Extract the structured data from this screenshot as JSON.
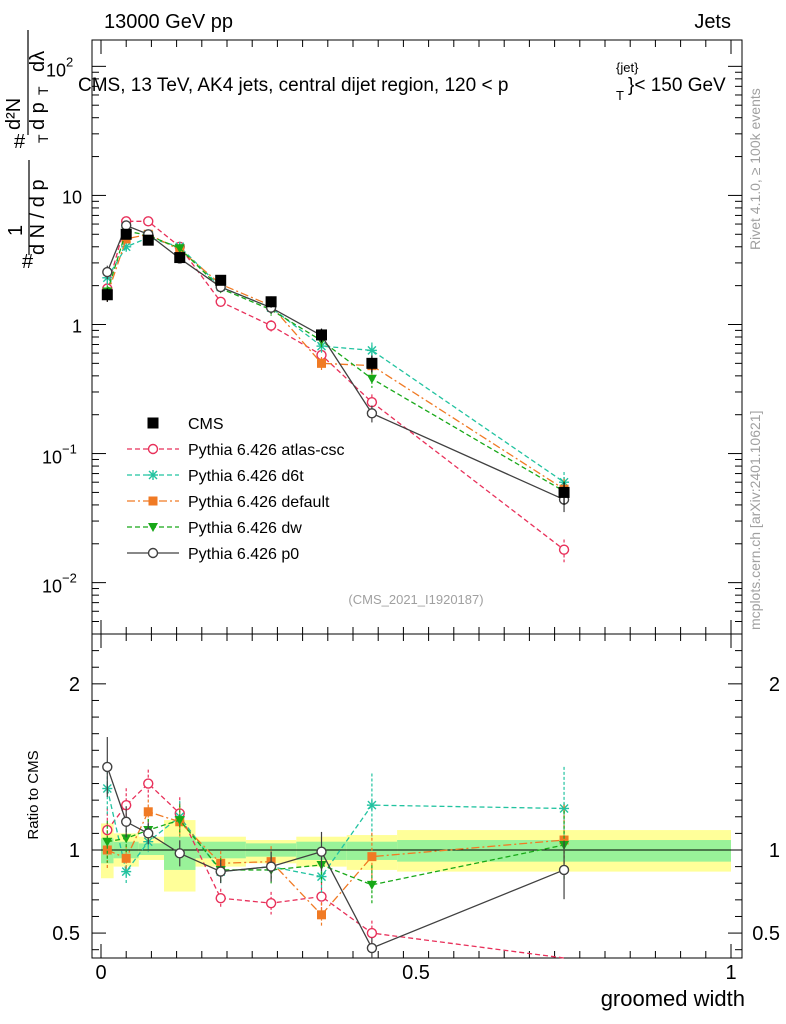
{
  "header": {
    "left": "13000 GeV pp",
    "right": "Jets",
    "plot_title": "CMS, 13 TeV, AK4 jets, central dijet region, 120 < p",
    "plot_title_sup": "{jet}",
    "plot_title_sub": "T",
    "plot_title_end": "}< 150 GeV",
    "side_right_top": "Rivet 4.1.0, ≥ 100k events",
    "side_right_bottom": "mcplots.cern.ch [arXiv:2401.10621]",
    "watermark": "(CMS_2021_I1920187)"
  },
  "colors": {
    "cms": "#000000",
    "atlas_csc": "#e8305a",
    "d6t": "#22c3a0",
    "default": "#f07a24",
    "dw": "#18a818",
    "p0": "#404040",
    "band_inner": "#99f299",
    "band_outer": "#ffff99"
  },
  "chart_data": [
    {
      "type": "scatter",
      "panel": "main",
      "title": "CMS, 13 TeV, AK4 jets, central dijet region, 120 < pT{jet} < 150 GeV",
      "ylabel": "1/(dN/dpT) d²N/(dpT dλ)",
      "xlabel": "groomed width",
      "yscale": "log",
      "xlim": [
        -0.02,
        1.0
      ],
      "ylim": [
        0.004,
        160
      ],
      "y_ticks": [
        "10^-2",
        "10^-1",
        "1",
        "10",
        "10^2"
      ],
      "x": [
        0.01,
        0.04,
        0.075,
        0.125,
        0.19,
        0.27,
        0.35,
        0.43,
        0.735
      ],
      "legend_position": "lower-left",
      "series": [
        {
          "name": "CMS",
          "key": "cms",
          "values": [
            1.7,
            5.0,
            4.5,
            3.3,
            2.2,
            1.5,
            0.83,
            0.5,
            0.05
          ]
        },
        {
          "name": "Pythia 6.426 atlas-csc",
          "key": "atlas_csc",
          "values": [
            1.9,
            6.3,
            6.3,
            4.0,
            1.5,
            0.98,
            0.58,
            0.25,
            0.018
          ]
        },
        {
          "name": "Pythia 6.426 d6t",
          "key": "d6t",
          "values": [
            2.3,
            4.0,
            4.7,
            4.0,
            1.95,
            1.35,
            0.68,
            0.63,
            0.06
          ]
        },
        {
          "name": "Pythia 6.426 default",
          "key": "default",
          "values": [
            1.7,
            4.6,
            5.0,
            3.8,
            2.05,
            1.4,
            0.5,
            0.48,
            0.053
          ]
        },
        {
          "name": "Pythia 6.426 dw",
          "key": "dw",
          "values": [
            1.8,
            5.3,
            4.9,
            3.9,
            1.9,
            1.3,
            0.75,
            0.38,
            0.051
          ]
        },
        {
          "name": "Pythia 6.426 p0",
          "key": "p0",
          "values": [
            2.55,
            5.85,
            5.0,
            3.25,
            1.95,
            1.35,
            0.82,
            0.205,
            0.044
          ]
        }
      ]
    },
    {
      "type": "scatter",
      "panel": "ratio",
      "ylabel": "Ratio to CMS",
      "xlabel": "groomed width",
      "xlim": [
        -0.02,
        1.0
      ],
      "ylim": [
        0.35,
        2.3
      ],
      "y_ticks": [
        "0.5",
        "1",
        "2"
      ],
      "x_ticks": [
        "0",
        "0.5",
        "1"
      ],
      "x": [
        0.01,
        0.04,
        0.075,
        0.125,
        0.19,
        0.27,
        0.35,
        0.43,
        0.735
      ],
      "bands": [
        {
          "xmin": 0.0,
          "xmax": 0.02,
          "inner": [
            0.92,
            1.07
          ],
          "outer": [
            0.83,
            1.16
          ]
        },
        {
          "xmin": 0.02,
          "xmax": 0.06,
          "inner": [
            0.95,
            1.05
          ],
          "outer": [
            0.9,
            1.1
          ]
        },
        {
          "xmin": 0.06,
          "xmax": 0.1,
          "inner": [
            0.97,
            1.04
          ],
          "outer": [
            0.94,
            1.08
          ]
        },
        {
          "xmin": 0.1,
          "xmax": 0.15,
          "inner": [
            0.88,
            1.08
          ],
          "outer": [
            0.75,
            1.18
          ]
        },
        {
          "xmin": 0.15,
          "xmax": 0.23,
          "inner": [
            0.95,
            1.05
          ],
          "outer": [
            0.9,
            1.08
          ]
        },
        {
          "xmin": 0.23,
          "xmax": 0.31,
          "inner": [
            0.96,
            1.04
          ],
          "outer": [
            0.92,
            1.06
          ]
        },
        {
          "xmin": 0.31,
          "xmax": 0.39,
          "inner": [
            0.94,
            1.05
          ],
          "outer": [
            0.9,
            1.08
          ]
        },
        {
          "xmin": 0.39,
          "xmax": 0.47,
          "inner": [
            0.94,
            1.05
          ],
          "outer": [
            0.88,
            1.09
          ]
        },
        {
          "xmin": 0.47,
          "xmax": 1.0,
          "inner": [
            0.93,
            1.06
          ],
          "outer": [
            0.87,
            1.12
          ]
        }
      ],
      "series": [
        {
          "name": "Pythia 6.426 atlas-csc",
          "key": "atlas_csc",
          "values": [
            1.12,
            1.27,
            1.4,
            1.22,
            0.71,
            0.68,
            0.72,
            0.5,
            0.3
          ]
        },
        {
          "name": "Pythia 6.426 d6t",
          "key": "d6t",
          "values": [
            1.37,
            0.87,
            1.05,
            1.2,
            0.87,
            0.9,
            0.84,
            1.27,
            1.25
          ]
        },
        {
          "name": "Pythia 6.426 default",
          "key": "default",
          "values": [
            1.0,
            0.95,
            1.23,
            1.17,
            0.92,
            0.93,
            0.61,
            0.96,
            1.06
          ]
        },
        {
          "name": "Pythia 6.426 dw",
          "key": "dw",
          "values": [
            1.05,
            1.07,
            1.12,
            1.18,
            0.88,
            0.88,
            0.91,
            0.79,
            1.03
          ]
        },
        {
          "name": "Pythia 6.426 p0",
          "key": "p0",
          "values": [
            1.5,
            1.17,
            1.1,
            0.98,
            0.87,
            0.9,
            0.99,
            0.41,
            0.88
          ]
        }
      ]
    }
  ]
}
